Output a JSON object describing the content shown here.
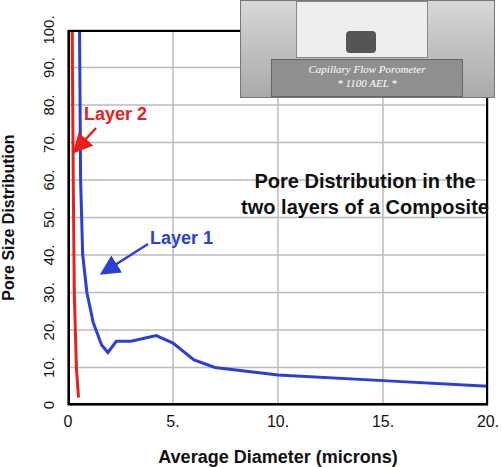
{
  "chart_data": {
    "type": "line",
    "title": "Pore Distribution in the two layers of a Composite",
    "x_label": "Average Diameter (microns)",
    "y_label": "Pore Size Distribution",
    "annotations": [
      "Capillary Flow Porometer",
      "* 1100 AEL *"
    ],
    "xlim": [
      0,
      20
    ],
    "xticks": [
      0,
      {
        "value": 5,
        "label": "5."
      },
      {
        "value": 10,
        "label": "10."
      },
      {
        "value": 15,
        "label": "15."
      },
      {
        "value": 20,
        "label": "20."
      }
    ],
    "ylim": [
      0,
      100
    ],
    "yticks": [
      0,
      {
        "value": 10,
        "label": "10."
      },
      {
        "value": 20,
        "label": "20."
      },
      {
        "value": 30,
        "label": "30."
      },
      {
        "value": 40,
        "label": "40."
      },
      {
        "value": 50,
        "label": "50."
      },
      {
        "value": 60,
        "label": "60."
      },
      {
        "value": 70,
        "label": "70."
      },
      {
        "value": 80,
        "label": "80."
      },
      {
        "value": 90,
        "label": "90."
      },
      {
        "value": 100,
        "label": "100."
      }
    ],
    "grid": true,
    "series": [
      {
        "name": "Layer 1",
        "color": "#2b3fd6",
        "x": [
          0.55,
          0.6,
          0.7,
          0.9,
          1.2,
          1.6,
          1.9,
          2.3,
          3,
          4.2,
          5,
          6,
          7,
          10,
          15,
          20
        ],
        "values": [
          100,
          60,
          40,
          30,
          22,
          16,
          14,
          17,
          17,
          18.5,
          16.5,
          12,
          10,
          8,
          6.5,
          5
        ]
      },
      {
        "name": "Layer 2",
        "color": "#e8201c",
        "x": [
          0.2,
          0.25,
          0.3,
          0.4,
          0.5
        ],
        "values": [
          100,
          60,
          30,
          10,
          2
        ]
      }
    ]
  }
}
